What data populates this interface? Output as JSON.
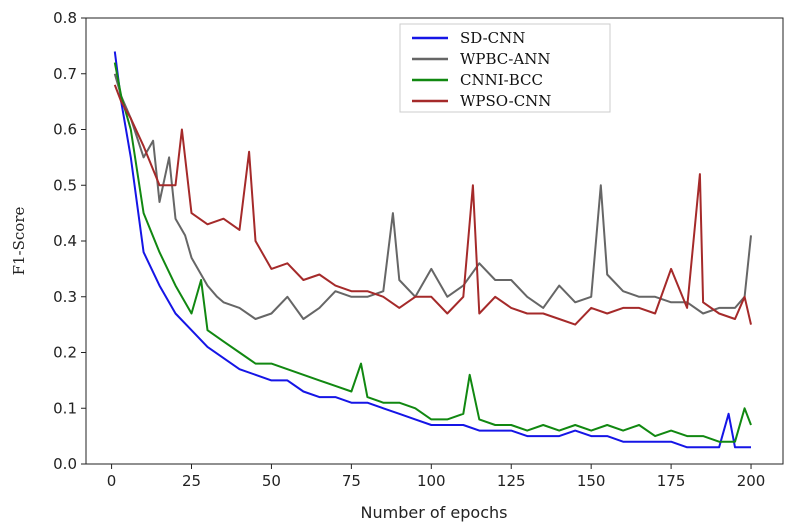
{
  "chart_data": {
    "type": "line",
    "xlabel": "Number of epochs",
    "ylabel": "F1-Score",
    "xlim": [
      -8,
      210
    ],
    "ylim": [
      0,
      0.8
    ],
    "xticks": [
      0,
      25,
      50,
      75,
      100,
      125,
      150,
      175,
      200
    ],
    "xtick_labels": [
      "0",
      "25",
      "50",
      "75",
      "100",
      "125",
      "150",
      "175",
      "200"
    ],
    "yticks": [
      0.0,
      0.1,
      0.2,
      0.3,
      0.4,
      0.5,
      0.6,
      0.7,
      0.8
    ],
    "ytick_labels": [
      "0.0",
      "0.1",
      "0.2",
      "0.3",
      "0.4",
      "0.5",
      "0.6",
      "0.7",
      "0.8"
    ],
    "grid": false,
    "legend_position": "top-center",
    "series": [
      {
        "name": "SD-CNN",
        "color": "#1515e6",
        "x": [
          1,
          3,
          6,
          10,
          15,
          20,
          25,
          30,
          35,
          40,
          45,
          50,
          55,
          60,
          65,
          70,
          75,
          80,
          85,
          90,
          95,
          100,
          105,
          110,
          115,
          120,
          125,
          130,
          135,
          140,
          145,
          150,
          155,
          160,
          165,
          170,
          175,
          180,
          185,
          190,
          193,
          195,
          198,
          200
        ],
        "values": [
          0.74,
          0.65,
          0.55,
          0.38,
          0.32,
          0.27,
          0.24,
          0.21,
          0.19,
          0.17,
          0.16,
          0.15,
          0.15,
          0.13,
          0.12,
          0.12,
          0.11,
          0.11,
          0.1,
          0.09,
          0.08,
          0.07,
          0.07,
          0.07,
          0.06,
          0.06,
          0.06,
          0.05,
          0.05,
          0.05,
          0.06,
          0.05,
          0.05,
          0.04,
          0.04,
          0.04,
          0.04,
          0.03,
          0.03,
          0.03,
          0.09,
          0.03,
          0.03,
          0.03
        ]
      },
      {
        "name": "WPBC-ANN",
        "color": "#666666",
        "x": [
          1,
          3,
          6,
          10,
          13,
          15,
          18,
          20,
          23,
          25,
          28,
          30,
          33,
          35,
          40,
          45,
          50,
          55,
          60,
          65,
          70,
          75,
          80,
          85,
          88,
          90,
          95,
          100,
          105,
          110,
          115,
          120,
          125,
          130,
          135,
          140,
          145,
          150,
          153,
          155,
          160,
          165,
          170,
          175,
          180,
          185,
          190,
          195,
          198,
          200
        ],
        "values": [
          0.7,
          0.66,
          0.62,
          0.55,
          0.58,
          0.47,
          0.55,
          0.44,
          0.41,
          0.37,
          0.34,
          0.32,
          0.3,
          0.29,
          0.28,
          0.26,
          0.27,
          0.3,
          0.26,
          0.28,
          0.31,
          0.3,
          0.3,
          0.31,
          0.45,
          0.33,
          0.3,
          0.35,
          0.3,
          0.32,
          0.36,
          0.33,
          0.33,
          0.3,
          0.28,
          0.32,
          0.29,
          0.3,
          0.5,
          0.34,
          0.31,
          0.3,
          0.3,
          0.29,
          0.29,
          0.27,
          0.28,
          0.28,
          0.3,
          0.41
        ]
      },
      {
        "name": "CNNI-BCC",
        "color": "#118811",
        "x": [
          1,
          3,
          6,
          10,
          15,
          20,
          25,
          28,
          30,
          35,
          40,
          45,
          50,
          55,
          60,
          65,
          70,
          75,
          78,
          80,
          85,
          90,
          95,
          100,
          105,
          110,
          112,
          115,
          120,
          125,
          130,
          135,
          140,
          145,
          150,
          155,
          160,
          165,
          170,
          175,
          180,
          185,
          190,
          195,
          198,
          200
        ],
        "values": [
          0.72,
          0.66,
          0.6,
          0.45,
          0.38,
          0.32,
          0.27,
          0.33,
          0.24,
          0.22,
          0.2,
          0.18,
          0.18,
          0.17,
          0.16,
          0.15,
          0.14,
          0.13,
          0.18,
          0.12,
          0.11,
          0.11,
          0.1,
          0.08,
          0.08,
          0.09,
          0.16,
          0.08,
          0.07,
          0.07,
          0.06,
          0.07,
          0.06,
          0.07,
          0.06,
          0.07,
          0.06,
          0.07,
          0.05,
          0.06,
          0.05,
          0.05,
          0.04,
          0.04,
          0.1,
          0.07
        ]
      },
      {
        "name": "WPSO-CNN",
        "color": "#a52a2a",
        "x": [
          1,
          3,
          6,
          10,
          15,
          20,
          22,
          25,
          30,
          35,
          40,
          43,
          45,
          50,
          55,
          60,
          65,
          70,
          75,
          80,
          85,
          90,
          95,
          100,
          105,
          110,
          113,
          115,
          120,
          125,
          130,
          135,
          140,
          145,
          150,
          155,
          160,
          165,
          170,
          175,
          180,
          184,
          185,
          190,
          195,
          198,
          200
        ],
        "values": [
          0.68,
          0.65,
          0.62,
          0.57,
          0.5,
          0.5,
          0.6,
          0.45,
          0.43,
          0.44,
          0.42,
          0.56,
          0.4,
          0.35,
          0.36,
          0.33,
          0.34,
          0.32,
          0.31,
          0.31,
          0.3,
          0.28,
          0.3,
          0.3,
          0.27,
          0.3,
          0.5,
          0.27,
          0.3,
          0.28,
          0.27,
          0.27,
          0.26,
          0.25,
          0.28,
          0.27,
          0.28,
          0.28,
          0.27,
          0.35,
          0.28,
          0.52,
          0.29,
          0.27,
          0.26,
          0.3,
          0.25
        ]
      }
    ]
  }
}
